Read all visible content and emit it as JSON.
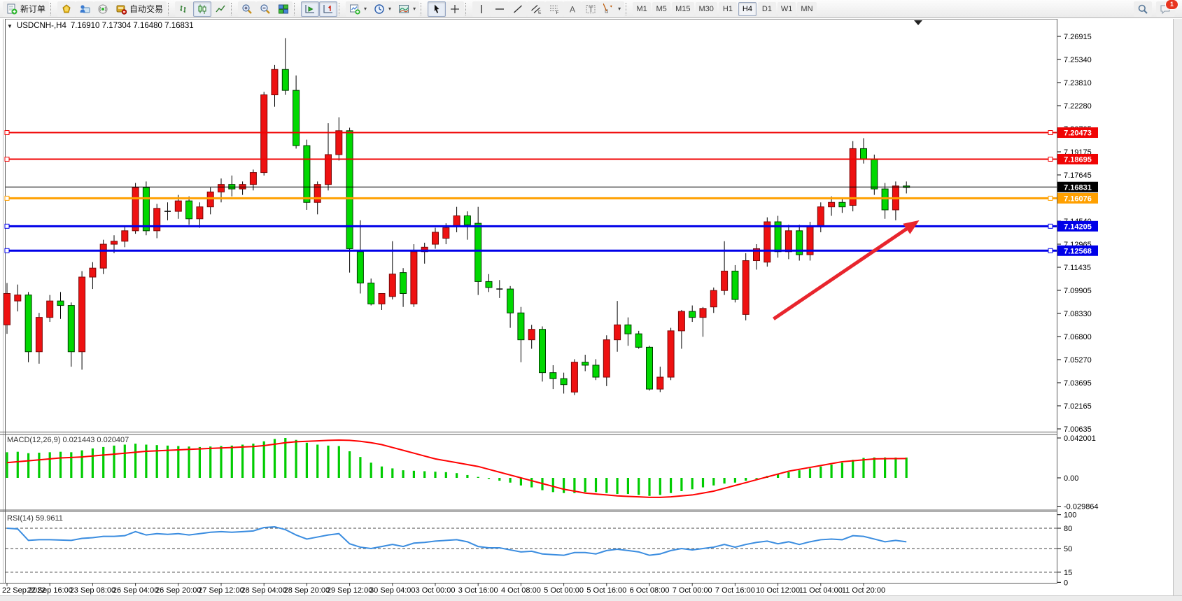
{
  "toolbar": {
    "new_order": "新订单",
    "autotrading": "自动交易",
    "timeframes": [
      "M1",
      "M5",
      "M15",
      "M30",
      "H1",
      "H4",
      "D1",
      "W1",
      "MN"
    ],
    "active_timeframe": "H4",
    "notification_count": "1",
    "icons": [
      "new-order",
      "favorites",
      "community",
      "signals",
      "autotrading",
      "bar-chart",
      "candlestick-chart",
      "line-chart",
      "zoom-in",
      "zoom-out",
      "tile-windows",
      "auto-scroll",
      "chart-shift",
      "new-chart",
      "periods",
      "templates",
      "cursor",
      "crosshair",
      "vertical-line",
      "horizontal-line",
      "trendline",
      "equidistant-channel",
      "fibonacci-retracement",
      "text",
      "text-label",
      "arrows",
      "search",
      "chat"
    ]
  },
  "title": {
    "symbol_period": "USDCNH-,H4",
    "ohlc_text": "7.16910 7.17304 7.16480 7.16831"
  },
  "colors": {
    "bull": "#ee1111",
    "bull_border": "#7a0707",
    "bear": "#00d800",
    "bear_border": "#003c00",
    "wick": "#000000",
    "doji": "#111111",
    "line_red": "#f00404",
    "line_orange": "#ffa000",
    "line_blue": "#0000e8",
    "current_price": "#000000",
    "macd_hist": "#00cc00",
    "macd_signal": "#ff0000",
    "rsi_line": "#3b8de0",
    "arrow": "#e8252d"
  },
  "chart_data": {
    "type": "candlestick",
    "symbol": "USDCNH-",
    "timeframe": "H4",
    "y_axis": {
      "min": 7.00635,
      "max": 7.26915,
      "ticks": [
        "7.26915",
        "7.25340",
        "7.23810",
        "7.22280",
        "7.20705",
        "7.19175",
        "7.17645",
        "7.16115",
        "7.14540",
        "7.12965",
        "7.11435",
        "7.09905",
        "7.08330",
        "7.06800",
        "7.05270",
        "7.03695",
        "7.02165",
        "7.00635"
      ]
    },
    "x_axis": {
      "ticks": [
        "22 Sep 2022",
        "22 Sep 16:00",
        "23 Sep 08:00",
        "26 Sep 04:00",
        "26 Sep 20:00",
        "27 Sep 12:00",
        "28 Sep 04:00",
        "28 Sep 20:00",
        "29 Sep 12:00",
        "30 Sep 04:00",
        "3 Oct 00:00",
        "3 Oct 16:00",
        "4 Oct 08:00",
        "5 Oct 00:00",
        "5 Oct 16:00",
        "6 Oct 08:00",
        "7 Oct 00:00",
        "7 Oct 16:00",
        "10 Oct 12:00",
        "11 Oct 04:00",
        "11 Oct 20:00"
      ]
    },
    "candles": [
      [
        7.076,
        7.104,
        7.07,
        7.097
      ],
      [
        7.092,
        7.103,
        7.085,
        7.096
      ],
      [
        7.096,
        7.098,
        7.051,
        7.058
      ],
      [
        7.058,
        7.084,
        7.05,
        7.081
      ],
      [
        7.081,
        7.096,
        7.078,
        7.092
      ],
      [
        7.092,
        7.098,
        7.08,
        7.089
      ],
      [
        7.089,
        7.091,
        7.048,
        7.058
      ],
      [
        7.058,
        7.112,
        7.046,
        7.108
      ],
      [
        7.108,
        7.118,
        7.1,
        7.114
      ],
      [
        7.114,
        7.133,
        7.11,
        7.13
      ],
      [
        7.13,
        7.136,
        7.124,
        7.132
      ],
      [
        7.132,
        7.142,
        7.128,
        7.139
      ],
      [
        7.139,
        7.171,
        7.137,
        7.168
      ],
      [
        7.168,
        7.172,
        7.136,
        7.139
      ],
      [
        7.139,
        7.157,
        7.134,
        7.154
      ],
      [
        7.152,
        7.158,
        7.146,
        7.152
      ],
      [
        7.152,
        7.163,
        7.147,
        7.159
      ],
      [
        7.159,
        7.162,
        7.143,
        7.147
      ],
      [
        7.147,
        7.158,
        7.141,
        7.155
      ],
      [
        7.155,
        7.168,
        7.15,
        7.165
      ],
      [
        7.165,
        7.174,
        7.158,
        7.17
      ],
      [
        7.17,
        7.176,
        7.162,
        7.167
      ],
      [
        7.167,
        7.172,
        7.163,
        7.17
      ],
      [
        7.17,
        7.18,
        7.166,
        7.178
      ],
      [
        7.178,
        7.232,
        7.176,
        7.23
      ],
      [
        7.23,
        7.25,
        7.222,
        7.247
      ],
      [
        7.247,
        7.268,
        7.23,
        7.233
      ],
      [
        7.233,
        7.243,
        7.194,
        7.196
      ],
      [
        7.196,
        7.2,
        7.153,
        7.158
      ],
      [
        7.158,
        7.172,
        7.15,
        7.17
      ],
      [
        7.17,
        7.211,
        7.166,
        7.19
      ],
      [
        7.19,
        7.215,
        7.186,
        7.206
      ],
      [
        7.206,
        7.208,
        7.111,
        7.127
      ],
      [
        7.125,
        7.146,
        7.097,
        7.104
      ],
      [
        7.104,
        7.107,
        7.089,
        7.09
      ],
      [
        7.09,
        7.097,
        7.086,
        7.097
      ],
      [
        7.095,
        7.132,
        7.093,
        7.11
      ],
      [
        7.111,
        7.114,
        7.088,
        7.097
      ],
      [
        7.09,
        7.13,
        7.088,
        7.125
      ],
      [
        7.125,
        7.131,
        7.117,
        7.128
      ],
      [
        7.13,
        7.141,
        7.127,
        7.138
      ],
      [
        7.134,
        7.144,
        7.13,
        7.141
      ],
      [
        7.142,
        7.155,
        7.138,
        7.149
      ],
      [
        7.149,
        7.152,
        7.133,
        7.143
      ],
      [
        7.144,
        7.155,
        7.096,
        7.105
      ],
      [
        7.105,
        7.11,
        7.098,
        7.101
      ],
      [
        7.1,
        7.106,
        7.094,
        7.1
      ],
      [
        7.1,
        7.102,
        7.074,
        7.084
      ],
      [
        7.084,
        7.088,
        7.051,
        7.066
      ],
      [
        7.066,
        7.076,
        7.06,
        7.073
      ],
      [
        7.073,
        7.075,
        7.038,
        7.044
      ],
      [
        7.044,
        7.049,
        7.033,
        7.04
      ],
      [
        7.04,
        7.044,
        7.03,
        7.036
      ],
      [
        7.031,
        7.053,
        7.029,
        7.051
      ],
      [
        7.051,
        7.056,
        7.045,
        7.049
      ],
      [
        7.049,
        7.053,
        7.039,
        7.041
      ],
      [
        7.041,
        7.069,
        7.035,
        7.066
      ],
      [
        7.066,
        7.092,
        7.058,
        7.076
      ],
      [
        7.076,
        7.081,
        7.062,
        7.07
      ],
      [
        7.07,
        7.072,
        7.06,
        7.061
      ],
      [
        7.061,
        7.062,
        7.032,
        7.033
      ],
      [
        7.033,
        7.048,
        7.031,
        7.041
      ],
      [
        7.041,
        7.074,
        7.039,
        7.072
      ],
      [
        7.072,
        7.086,
        7.06,
        7.085
      ],
      [
        7.085,
        7.089,
        7.078,
        7.081
      ],
      [
        7.081,
        7.088,
        7.068,
        7.087
      ],
      [
        7.088,
        7.101,
        7.084,
        7.099
      ],
      [
        7.099,
        7.132,
        7.096,
        7.112
      ],
      [
        7.112,
        7.116,
        7.091,
        7.093
      ],
      [
        7.083,
        7.124,
        7.079,
        7.119
      ],
      [
        7.119,
        7.13,
        7.113,
        7.127
      ],
      [
        7.118,
        7.148,
        7.115,
        7.145
      ],
      [
        7.145,
        7.149,
        7.121,
        7.125
      ],
      [
        7.125,
        7.143,
        7.12,
        7.139
      ],
      [
        7.139,
        7.143,
        7.119,
        7.123
      ],
      [
        7.123,
        7.145,
        7.119,
        7.142
      ],
      [
        7.142,
        7.158,
        7.138,
        7.155
      ],
      [
        7.155,
        7.162,
        7.149,
        7.158
      ],
      [
        7.158,
        7.161,
        7.151,
        7.155
      ],
      [
        7.156,
        7.199,
        7.152,
        7.194
      ],
      [
        7.194,
        7.201,
        7.184,
        7.187
      ],
      [
        7.187,
        7.19,
        7.163,
        7.167
      ],
      [
        7.167,
        7.171,
        7.147,
        7.153
      ],
      [
        7.153,
        7.172,
        7.146,
        7.169
      ],
      [
        7.169,
        7.172,
        7.164,
        7.168
      ]
    ],
    "doji_indices": [
      15,
      46
    ],
    "horizontal_lines": [
      {
        "price": 7.20473,
        "label": "7.20473",
        "color": "#f00404",
        "width": 2
      },
      {
        "price": 7.18695,
        "label": "7.18695",
        "color": "#f00404",
        "width": 2
      },
      {
        "price": 7.16076,
        "label": "7.16076",
        "color": "#ffa000",
        "width": 3
      },
      {
        "price": 7.14205,
        "label": "7.14205",
        "color": "#0000e8",
        "width": 3
      },
      {
        "price": 7.12568,
        "label": "7.12568",
        "color": "#0000e8",
        "width": 3
      }
    ],
    "current_price": {
      "value": 7.16831,
      "label": "7.16831"
    },
    "arrow": {
      "from": {
        "bar": 71.6,
        "price": 7.08
      },
      "to": {
        "bar": 85.2,
        "price": 7.146
      }
    },
    "shift_marker_bar": 85.1,
    "macd": {
      "label_full": "MACD(12,26,9) 0.021443 0.020407",
      "main_value": "0.021443",
      "signal_value": "0.020407",
      "scale_ticks": [
        {
          "v": 0.042001,
          "label": "0.042001"
        },
        {
          "v": 0.0,
          "label": "0.00"
        },
        {
          "v": -0.029864,
          "label": "-0.029864"
        }
      ],
      "histogram": [
        0.027,
        0.0275,
        0.026,
        0.0265,
        0.027,
        0.0275,
        0.027,
        0.029,
        0.031,
        0.0325,
        0.034,
        0.035,
        0.036,
        0.035,
        0.0345,
        0.034,
        0.0335,
        0.033,
        0.0325,
        0.033,
        0.0335,
        0.034,
        0.035,
        0.036,
        0.0385,
        0.041,
        0.042,
        0.04,
        0.037,
        0.035,
        0.034,
        0.0335,
        0.028,
        0.022,
        0.016,
        0.012,
        0.01,
        0.008,
        0.0075,
        0.007,
        0.0065,
        0.006,
        0.005,
        0.003,
        0.001,
        -0.001,
        -0.003,
        -0.005,
        -0.008,
        -0.01,
        -0.013,
        -0.015,
        -0.016,
        -0.016,
        -0.015,
        -0.015,
        -0.016,
        -0.017,
        -0.017,
        -0.018,
        -0.019,
        -0.018,
        -0.016,
        -0.014,
        -0.012,
        -0.01,
        -0.008,
        -0.006,
        -0.005,
        -0.003,
        -0.001,
        0.002,
        0.004,
        0.006,
        0.008,
        0.01,
        0.012,
        0.014,
        0.016,
        0.019,
        0.021,
        0.0215,
        0.0215,
        0.0214,
        0.0214
      ],
      "signal": [
        0.016,
        0.017,
        0.018,
        0.019,
        0.02,
        0.021,
        0.0215,
        0.022,
        0.023,
        0.024,
        0.025,
        0.026,
        0.027,
        0.028,
        0.0285,
        0.029,
        0.0295,
        0.03,
        0.0305,
        0.031,
        0.0315,
        0.032,
        0.0325,
        0.033,
        0.034,
        0.0355,
        0.037,
        0.038,
        0.0385,
        0.039,
        0.0395,
        0.0398,
        0.0395,
        0.0385,
        0.037,
        0.035,
        0.032,
        0.029,
        0.026,
        0.023,
        0.02,
        0.018,
        0.016,
        0.014,
        0.012,
        0.009,
        0.006,
        0.003,
        0.0,
        -0.003,
        -0.006,
        -0.009,
        -0.012,
        -0.014,
        -0.016,
        -0.017,
        -0.018,
        -0.019,
        -0.0195,
        -0.02,
        -0.0205,
        -0.0205,
        -0.02,
        -0.019,
        -0.018,
        -0.016,
        -0.014,
        -0.011,
        -0.008,
        -0.005,
        -0.002,
        0.001,
        0.004,
        0.007,
        0.009,
        0.011,
        0.013,
        0.015,
        0.017,
        0.018,
        0.019,
        0.02,
        0.0202,
        0.0203,
        0.0204
      ]
    },
    "rsi": {
      "label_full": "RSI(14) 59.9611",
      "value": "59.9611",
      "scale_ticks": [
        {
          "v": 100,
          "label": "100"
        },
        {
          "v": 80,
          "label": "80"
        },
        {
          "v": 50,
          "label": "50"
        },
        {
          "v": 15,
          "label": "15"
        },
        {
          "v": 0,
          "label": "0"
        }
      ],
      "dashed_levels": [
        80,
        50,
        15
      ],
      "series": [
        80,
        79,
        62,
        63,
        63,
        62.5,
        62,
        65,
        66,
        68,
        68,
        69,
        75,
        70,
        72,
        71,
        72,
        70,
        72,
        74,
        75,
        74,
        75,
        76,
        81,
        82,
        78,
        70,
        64,
        67,
        70,
        72,
        57,
        52,
        50,
        53,
        56,
        53,
        58,
        59,
        61,
        62,
        63,
        60,
        53,
        51,
        51,
        48,
        45,
        46,
        42,
        41,
        40,
        44,
        44,
        42,
        47,
        49,
        47,
        45,
        40,
        42,
        47,
        50,
        48,
        50,
        52,
        56,
        52,
        56,
        59,
        61,
        57,
        60,
        56,
        60,
        63,
        64,
        63,
        69,
        68,
        64,
        60,
        62,
        60
      ]
    }
  }
}
